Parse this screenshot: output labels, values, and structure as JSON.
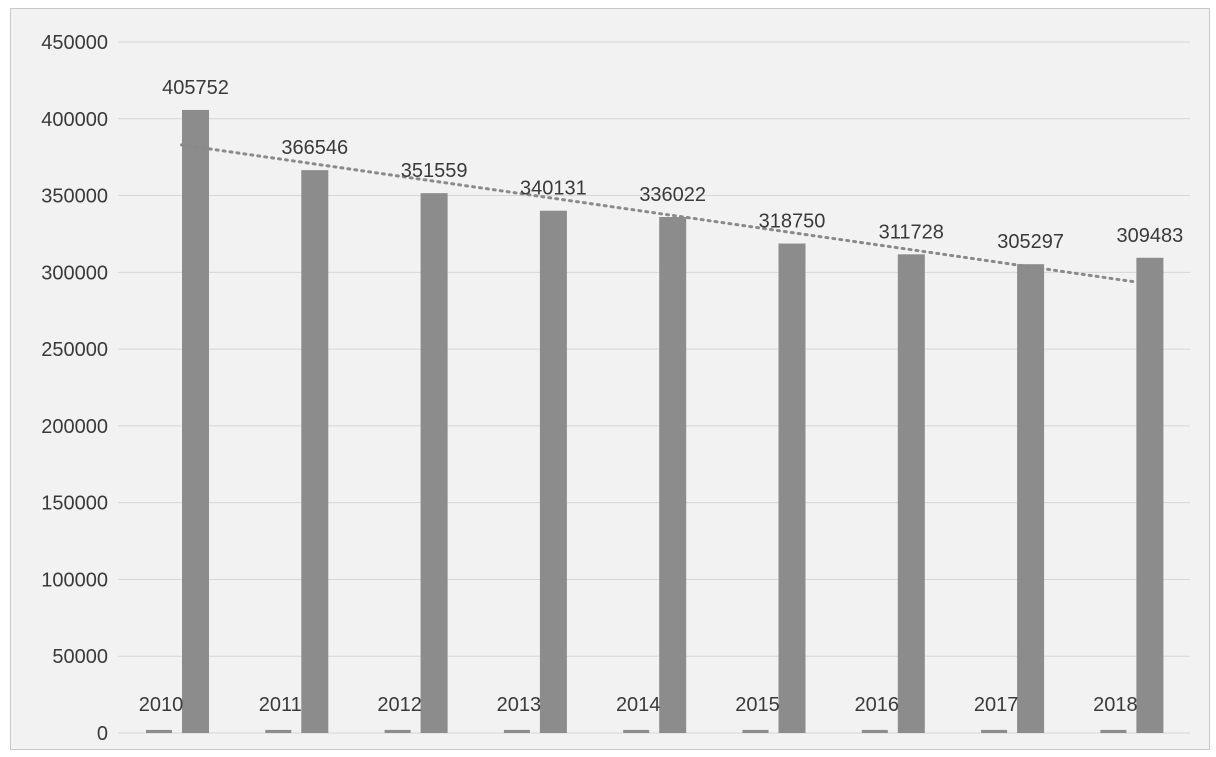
{
  "chart_data": {
    "type": "bar",
    "categories": [
      "2010",
      "2011",
      "2012",
      "2013",
      "2014",
      "2015",
      "2016",
      "2017",
      "2018"
    ],
    "series": [
      {
        "values": [
          2010,
          2011,
          2012,
          2013,
          2014,
          2015,
          2016,
          2017,
          2018
        ]
      },
      {
        "values": [
          405752,
          366546,
          351559,
          340131,
          336022,
          318750,
          311728,
          305297,
          309483
        ]
      }
    ],
    "data_labels": [
      "405752",
      "366546",
      "351559",
      "340131",
      "336022",
      "318750",
      "311728",
      "305297",
      "309483"
    ],
    "category_labels_inside_plot": true,
    "trendline": {
      "type": "linear",
      "style": "dotted",
      "series_index": 1
    },
    "ylim": [
      0,
      450000
    ],
    "yticks": [
      0,
      50000,
      100000,
      150000,
      200000,
      250000,
      300000,
      350000,
      400000,
      450000
    ],
    "ytick_labels": [
      "0",
      "50000",
      "100000",
      "150000",
      "200000",
      "250000",
      "300000",
      "350000",
      "400000",
      "450000"
    ],
    "grid": true,
    "legend": "none",
    "colors": {
      "bar": "#8c8c8c",
      "trend": "#8a8a8a",
      "grid": "#d6d6d6",
      "background": "#f2f2f2"
    }
  }
}
